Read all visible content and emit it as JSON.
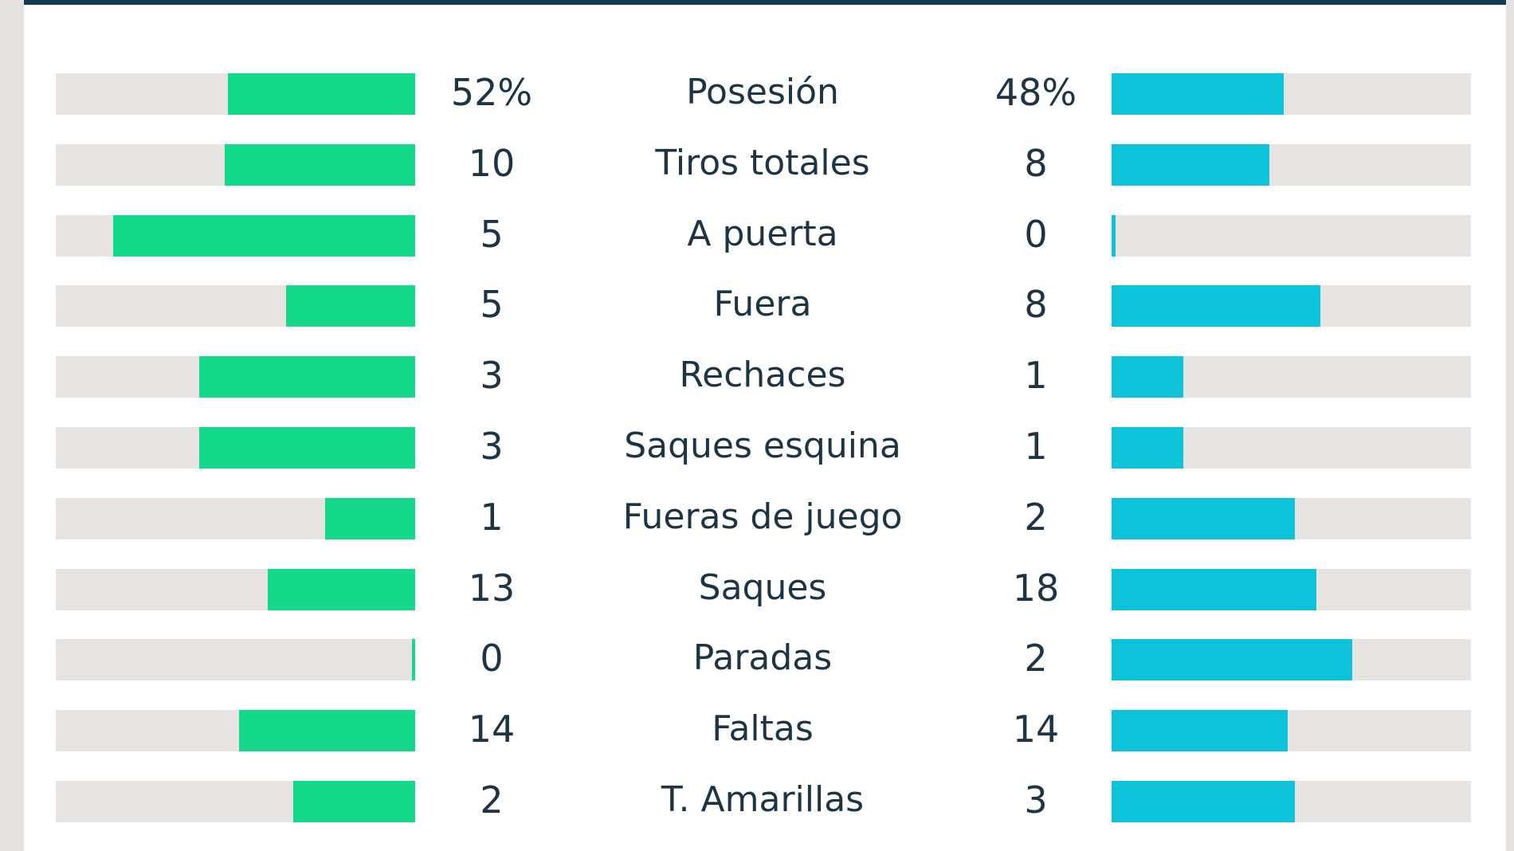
{
  "colors": {
    "home": "#14d98b",
    "away": "#0cc3da",
    "track": "#e6e3e0",
    "text": "#1d3445",
    "header": "#123a55"
  },
  "chart_data": {
    "type": "bar",
    "categories": [
      "Posesión",
      "Tiros totales",
      "A puerta",
      "Fuera",
      "Rechaces",
      "Saques esquina",
      "Fueras de juego",
      "Saques",
      "Paradas",
      "Faltas",
      "T. Amarillas"
    ],
    "series": [
      {
        "values": [
          "52%",
          "10",
          "5",
          "5",
          "3",
          "3",
          "1",
          "13",
          "0",
          "14",
          "2"
        ],
        "fill": [
          0.52,
          0.53,
          0.84,
          0.36,
          0.6,
          0.6,
          0.25,
          0.41,
          0.01,
          0.49,
          0.34
        ]
      },
      {
        "values": [
          "48%",
          "8",
          "0",
          "8",
          "1",
          "1",
          "2",
          "18",
          "2",
          "14",
          "3"
        ],
        "fill": [
          0.48,
          0.44,
          0.01,
          0.58,
          0.2,
          0.2,
          0.51,
          0.57,
          0.67,
          0.49,
          0.51
        ]
      }
    ]
  }
}
